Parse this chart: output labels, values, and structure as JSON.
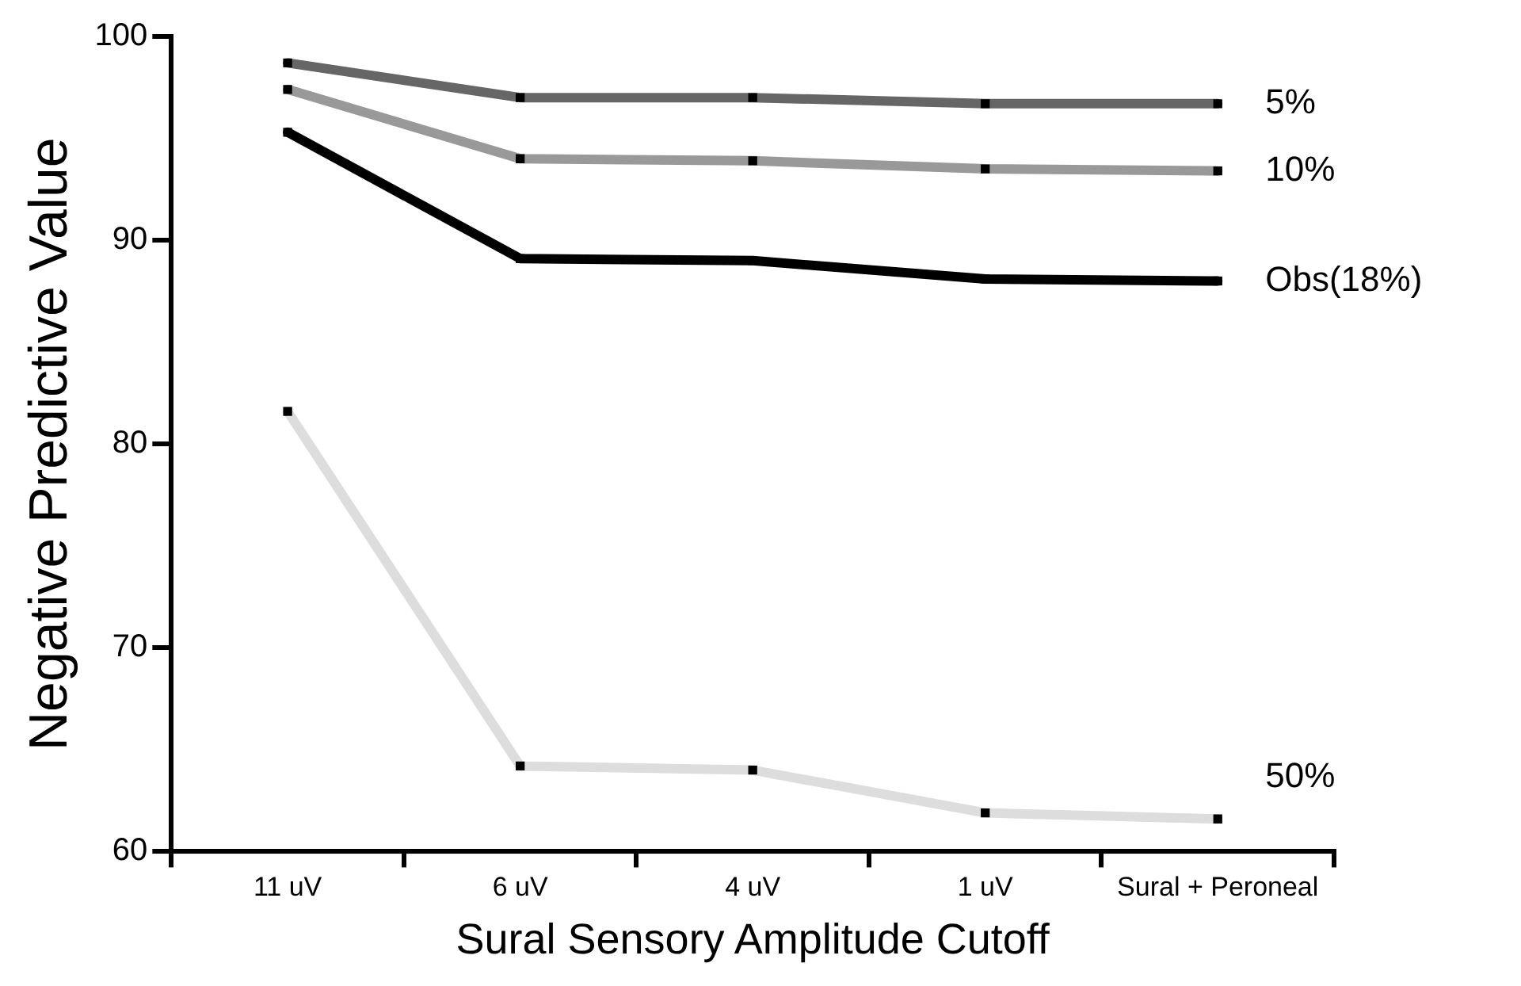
{
  "chart_data": {
    "type": "line",
    "xlabel": "Sural Sensory Amplitude Cutoff",
    "ylabel": "Negative Predictive Value",
    "categories": [
      "11 uV",
      "6 uV",
      "4 uV",
      "1 uV",
      "Sural + Peroneal"
    ],
    "ylim": [
      60,
      100
    ],
    "yticks": [
      60,
      70,
      80,
      90,
      100
    ],
    "grid": false,
    "marker": "square",
    "line_style": "solid",
    "series": [
      {
        "name": "5%",
        "color": "#666666",
        "values": [
          98.7,
          97.0,
          97.0,
          96.7,
          96.7
        ]
      },
      {
        "name": "10%",
        "color": "#999999",
        "values": [
          97.4,
          94.0,
          93.9,
          93.5,
          93.4
        ]
      },
      {
        "name": "Obs(18%)",
        "color": "#000000",
        "values": [
          95.3,
          89.1,
          89.0,
          88.1,
          88.0
        ]
      },
      {
        "name": "50%",
        "color": "#dddddd",
        "values": [
          81.6,
          64.2,
          64.0,
          61.9,
          61.6
        ]
      }
    ]
  }
}
